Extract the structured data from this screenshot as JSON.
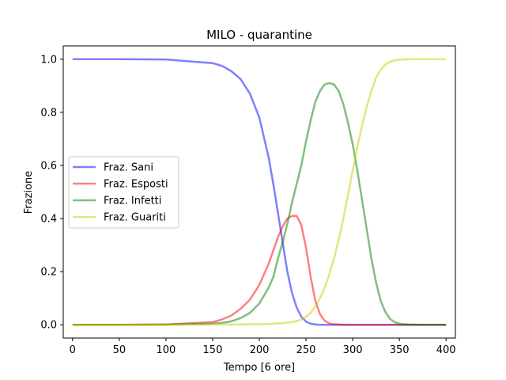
{
  "chart_data": {
    "type": "line",
    "title": "MILO - quarantine",
    "xlabel": "Tempo [6 ore]",
    "ylabel": "Frazione",
    "xlim": [
      -10,
      410
    ],
    "ylim": [
      -0.05,
      1.05
    ],
    "xticks": [
      0,
      50,
      100,
      150,
      200,
      250,
      300,
      350,
      400
    ],
    "yticks": [
      0.0,
      0.2,
      0.4,
      0.6,
      0.8,
      1.0
    ],
    "ytick_labels": [
      "0.0",
      "0.2",
      "0.4",
      "0.6",
      "0.8",
      "1.0"
    ],
    "grid": false,
    "legend_position": "center-left",
    "x": [
      0,
      50,
      100,
      150,
      160,
      170,
      180,
      190,
      200,
      210,
      215,
      220,
      225,
      230,
      235,
      240,
      245,
      250,
      255,
      260,
      265,
      270,
      275,
      280,
      285,
      290,
      295,
      300,
      305,
      310,
      315,
      320,
      325,
      330,
      335,
      340,
      345,
      350,
      355,
      360,
      370,
      380,
      400
    ],
    "series": [
      {
        "name": "Fraz. Sani",
        "color": "#0000ff",
        "values": [
          1.0,
          1.0,
          0.999,
          0.985,
          0.975,
          0.955,
          0.925,
          0.87,
          0.78,
          0.63,
          0.53,
          0.42,
          0.31,
          0.2,
          0.12,
          0.065,
          0.03,
          0.012,
          0.004,
          0.001,
          0,
          0,
          0,
          0,
          0,
          0,
          0,
          0,
          0,
          0,
          0,
          0,
          0,
          0,
          0,
          0,
          0,
          0,
          0,
          0,
          0,
          0,
          0
        ]
      },
      {
        "name": "Fraz. Esposti",
        "color": "#ff0000",
        "values": [
          0,
          0,
          0.001,
          0.01,
          0.02,
          0.035,
          0.06,
          0.095,
          0.15,
          0.23,
          0.28,
          0.33,
          0.37,
          0.4,
          0.41,
          0.41,
          0.375,
          0.29,
          0.18,
          0.09,
          0.04,
          0.015,
          0.005,
          0.002,
          0.001,
          0,
          0,
          0,
          0,
          0,
          0,
          0,
          0,
          0,
          0,
          0,
          0,
          0,
          0,
          0,
          0,
          0,
          0
        ]
      },
      {
        "name": "Fraz. Infetti",
        "color": "#008000",
        "values": [
          0,
          0,
          0.001,
          0.004,
          0.007,
          0.013,
          0.025,
          0.045,
          0.08,
          0.14,
          0.18,
          0.25,
          0.31,
          0.38,
          0.46,
          0.53,
          0.6,
          0.69,
          0.77,
          0.84,
          0.88,
          0.905,
          0.91,
          0.905,
          0.88,
          0.83,
          0.76,
          0.68,
          0.58,
          0.47,
          0.36,
          0.25,
          0.16,
          0.09,
          0.048,
          0.022,
          0.01,
          0.004,
          0.002,
          0.001,
          0,
          0,
          0
        ]
      },
      {
        "name": "Fraz. Guariti",
        "color": "#cccc00",
        "values": [
          0,
          0,
          0,
          0.001,
          0.001,
          0.001,
          0.001,
          0.002,
          0.002,
          0.003,
          0.004,
          0.005,
          0.006,
          0.008,
          0.01,
          0.014,
          0.02,
          0.03,
          0.045,
          0.07,
          0.1,
          0.14,
          0.19,
          0.25,
          0.32,
          0.4,
          0.49,
          0.58,
          0.67,
          0.75,
          0.82,
          0.88,
          0.93,
          0.96,
          0.98,
          0.99,
          0.996,
          0.998,
          0.999,
          1.0,
          1.0,
          1.0,
          1.0
        ]
      }
    ]
  }
}
